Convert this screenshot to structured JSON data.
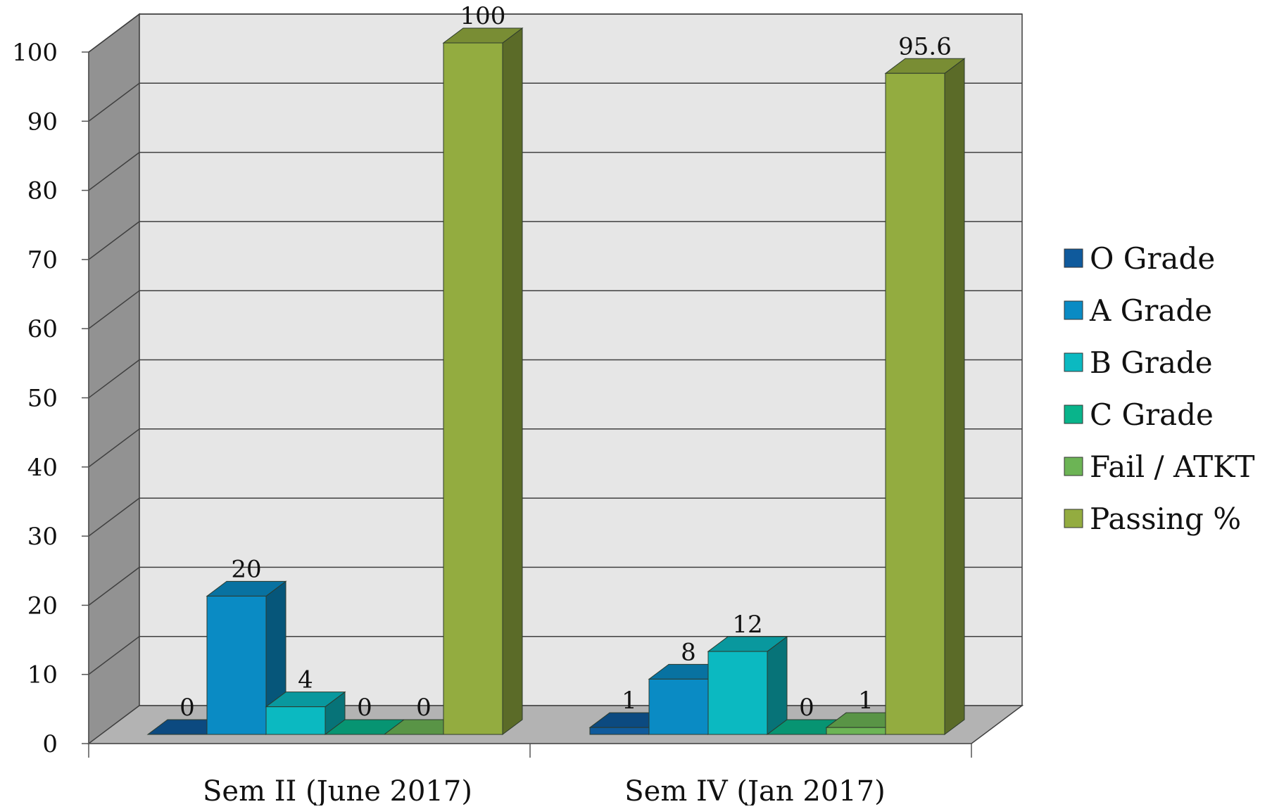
{
  "chart_data": {
    "type": "bar",
    "categories": [
      "Sem II (June 2017)",
      "Sem IV (Jan 2017)"
    ],
    "series": [
      {
        "name": "O Grade",
        "values": [
          0,
          1
        ],
        "color": "#0f5a9c",
        "data_labels": [
          "0",
          "1"
        ]
      },
      {
        "name": "A Grade",
        "values": [
          20,
          8
        ],
        "color": "#0a8bc4",
        "data_labels": [
          "20",
          "8"
        ]
      },
      {
        "name": "B Grade",
        "values": [
          4,
          12
        ],
        "color": "#0bb9c1",
        "data_labels": [
          "4",
          "12"
        ]
      },
      {
        "name": "C Grade",
        "values": [
          0,
          0
        ],
        "color": "#09b48b",
        "data_labels": [
          "0",
          "0"
        ]
      },
      {
        "name": "Fail / ATKT",
        "values": [
          0,
          1
        ],
        "color": "#6cb455",
        "data_labels": [
          "0",
          "1"
        ]
      },
      {
        "name": "Passing %",
        "values": [
          100,
          95.6
        ],
        "color": "#93ac40",
        "data_labels": [
          "100",
          "95.6"
        ]
      }
    ],
    "y_ticks": [
      "0",
      "10",
      "20",
      "30",
      "40",
      "50",
      "60",
      "70",
      "80",
      "90",
      "100"
    ],
    "ylim": [
      0,
      100
    ],
    "grid": true,
    "legend_position": "right",
    "style": "3d-clustered-column"
  }
}
